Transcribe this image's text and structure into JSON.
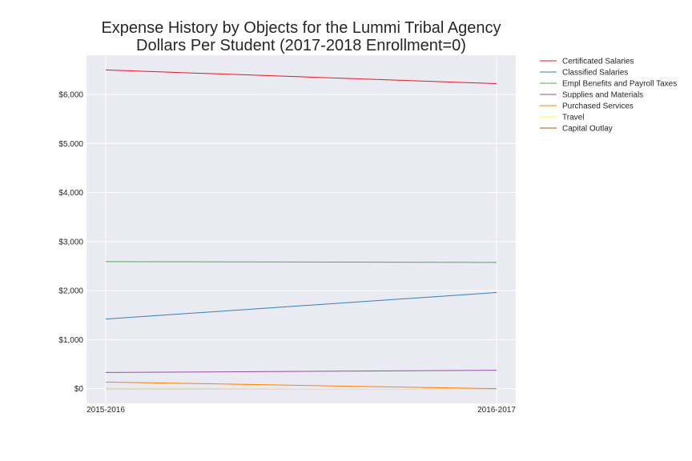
{
  "chart_data": {
    "type": "line",
    "title": "Expense History by Objects for the Lummi Tribal Agency",
    "subtitle": "Dollars Per Student (2017-2018 Enrollment=0)",
    "xlabel": "",
    "ylabel": "",
    "categories": [
      "2015-2016",
      "2016-2017"
    ],
    "ylim": [
      -300,
      6800
    ],
    "yticks": [
      0,
      1000,
      2000,
      3000,
      4000,
      5000,
      6000
    ],
    "ytick_labels": [
      "$0",
      "$1,000",
      "$2,000",
      "$3,000",
      "$4,000",
      "$5,000",
      "$6,000"
    ],
    "grid": true,
    "legend_position": "outside-right-top",
    "series": [
      {
        "name": "Certificated Salaries",
        "color": "#e41a1c",
        "values": [
          6500,
          6220
        ]
      },
      {
        "name": "Classified Salaries",
        "color": "#377eb8",
        "values": [
          1420,
          1960
        ]
      },
      {
        "name": "Empl Benefits and Payroll Taxes",
        "color": "#4daf4a",
        "values": [
          2590,
          2575
        ]
      },
      {
        "name": "Supplies and Materials",
        "color": "#984ea3",
        "values": [
          330,
          375
        ]
      },
      {
        "name": "Purchased Services",
        "color": "#ff7f00",
        "values": [
          135,
          0
        ]
      },
      {
        "name": "Travel",
        "color": "#ffff33",
        "values": [
          5,
          0
        ]
      },
      {
        "name": "Capital Outlay",
        "color": "#a65628",
        "values": [
          0,
          0
        ]
      }
    ]
  }
}
